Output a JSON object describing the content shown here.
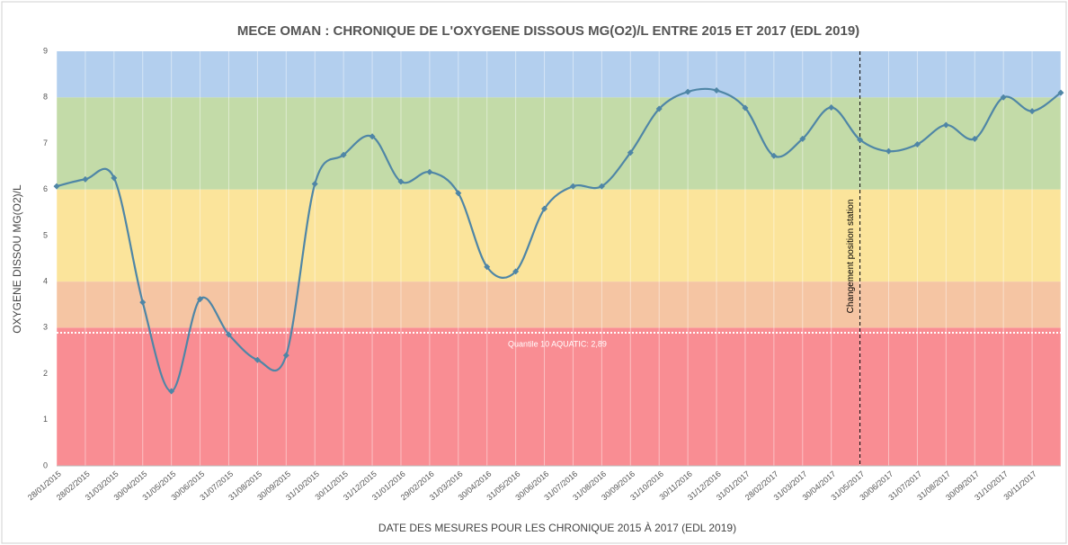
{
  "chart_data": {
    "type": "line",
    "title": "MECE OMAN : CHRONIQUE DE L'OXYGENE DISSOUS MG(O2)/L ENTRE 2015 ET 2017 (EDL 2019)",
    "x_label": "DATE DES MESURES POUR LES CHRONIQUE 2015 À 2017 (EDL 2019)",
    "y_label": "OXYGENE DISSOU MG(O2)/L",
    "categories": [
      "28/01/2015",
      "28/02/2015",
      "31/03/2015",
      "30/04/2015",
      "31/05/2015",
      "30/06/2015",
      "31/07/2015",
      "31/08/2015",
      "30/09/2015",
      "31/10/2015",
      "30/11/2015",
      "31/12/2015",
      "31/01/2016",
      "29/02/2016",
      "31/03/2016",
      "30/04/2016",
      "31/05/2016",
      "30/06/2016",
      "31/07/2016",
      "31/08/2016",
      "30/09/2016",
      "31/10/2016",
      "30/11/2016",
      "31/12/2016",
      "31/01/2017",
      "28/02/2017",
      "31/03/2017",
      "30/04/2017",
      "31/05/2017",
      "30/06/2017",
      "31/07/2017",
      "31/08/2017",
      "30/09/2017",
      "31/10/2017",
      "30/11/2017",
      null
    ],
    "values": [
      6.07,
      6.22,
      6.25,
      3.55,
      1.62,
      3.62,
      2.85,
      2.3,
      2.4,
      6.12,
      6.75,
      7.15,
      6.17,
      6.38,
      5.92,
      4.32,
      4.22,
      5.58,
      6.07,
      6.07,
      6.8,
      7.75,
      8.12,
      8.15,
      7.77,
      6.73,
      7.1,
      7.78,
      7.08,
      6.83,
      6.98,
      7.4,
      7.1,
      8.0,
      7.7,
      8.1
    ],
    "color": "#4f86a6",
    "ylim": [
      0,
      9
    ],
    "yticks": [
      0,
      1,
      2,
      3,
      4,
      5,
      6,
      7,
      8,
      9
    ],
    "grid": true,
    "bands": [
      {
        "from": 0,
        "to": 3,
        "color": "#f98d93"
      },
      {
        "from": 3,
        "to": 4,
        "color": "#f5c5a3"
      },
      {
        "from": 4,
        "to": 6,
        "color": "#fbe49b"
      },
      {
        "from": 6,
        "to": 8,
        "color": "#c3dba8"
      },
      {
        "from": 8,
        "to": 9,
        "color": "#b3cfee"
      }
    ],
    "threshold": {
      "value": 2.89,
      "label": "Quantile 10 AQUATIC: 2,89"
    },
    "vline": {
      "at": "31/05/2017",
      "label": "Changement position station"
    }
  }
}
